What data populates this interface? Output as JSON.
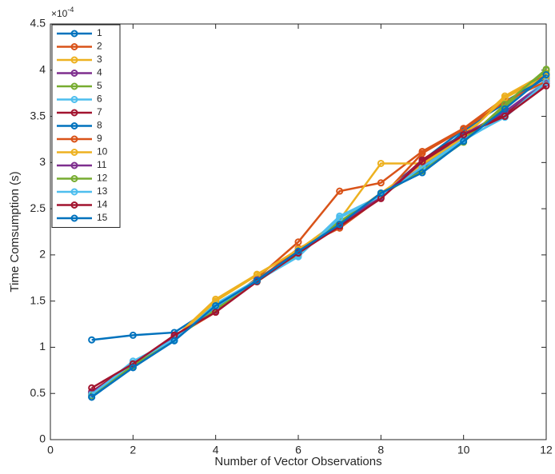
{
  "chart_data": {
    "type": "line",
    "x_label": "Number of Vector Observations",
    "y_label": "Time Comsumption (s)",
    "y_multiplier_base": "×10",
    "y_multiplier_exponent": "-4",
    "x": [
      1,
      2,
      3,
      4,
      5,
      6,
      7,
      8,
      9,
      10,
      11,
      12
    ],
    "xlim": [
      0,
      12
    ],
    "xticks": [
      0,
      2,
      4,
      6,
      8,
      10,
      12
    ],
    "ylim": [
      0,
      4.5
    ],
    "yticks": [
      0,
      0.5,
      1,
      1.5,
      2,
      2.5,
      3,
      3.5,
      4,
      4.5
    ],
    "grid": false,
    "legend_position": "upper-left",
    "series": [
      {
        "name": "1",
        "color": "#0072BD",
        "values": [
          1.08,
          1.13,
          1.16,
          1.45,
          1.73,
          2.03,
          2.35,
          2.65,
          3.02,
          3.36,
          3.64,
          3.92
        ]
      },
      {
        "name": "2",
        "color": "#D95319",
        "values": [
          0.49,
          0.8,
          1.1,
          1.4,
          1.75,
          2.14,
          2.69,
          2.78,
          3.12,
          3.37,
          3.7,
          3.95
        ]
      },
      {
        "name": "3",
        "color": "#EDB120",
        "values": [
          0.5,
          0.82,
          1.1,
          1.52,
          1.79,
          2.05,
          2.38,
          2.99,
          2.99,
          3.3,
          3.72,
          3.97
        ]
      },
      {
        "name": "4",
        "color": "#7E2F8E",
        "values": [
          0.48,
          0.81,
          1.09,
          1.44,
          1.72,
          2.02,
          2.33,
          2.65,
          2.95,
          3.28,
          3.55,
          3.88
        ]
      },
      {
        "name": "5",
        "color": "#77AC30",
        "values": [
          0.5,
          0.82,
          1.1,
          1.42,
          1.74,
          2.03,
          2.36,
          2.66,
          2.94,
          3.25,
          3.6,
          4.0
        ]
      },
      {
        "name": "6",
        "color": "#4DBEEE",
        "values": [
          0.49,
          0.85,
          1.08,
          1.47,
          1.73,
          1.99,
          2.42,
          2.64,
          2.93,
          3.24,
          3.5,
          3.9
        ]
      },
      {
        "name": "7",
        "color": "#A2142F",
        "values": [
          0.52,
          0.82,
          1.12,
          1.41,
          1.72,
          2.04,
          2.34,
          2.62,
          3.03,
          3.31,
          3.52,
          3.86
        ]
      },
      {
        "name": "8",
        "color": "#0072BD",
        "values": [
          0.46,
          0.78,
          1.08,
          1.43,
          1.71,
          2.04,
          2.33,
          2.66,
          2.93,
          3.34,
          3.66,
          3.92
        ]
      },
      {
        "name": "9",
        "color": "#D95319",
        "values": [
          0.5,
          0.81,
          1.11,
          1.38,
          1.72,
          2.07,
          2.29,
          2.62,
          3.1,
          3.36,
          3.66,
          3.88
        ]
      },
      {
        "name": "10",
        "color": "#EDB120",
        "values": [
          0.49,
          0.8,
          1.09,
          1.5,
          1.78,
          2.06,
          2.35,
          2.67,
          2.98,
          3.27,
          3.7,
          3.93
        ]
      },
      {
        "name": "11",
        "color": "#7E2F8E",
        "values": [
          0.51,
          0.8,
          1.11,
          1.4,
          1.73,
          2.03,
          2.33,
          2.63,
          3.01,
          3.3,
          3.55,
          3.86
        ]
      },
      {
        "name": "12",
        "color": "#77AC30",
        "values": [
          0.48,
          0.8,
          1.09,
          1.41,
          1.71,
          2.01,
          2.36,
          2.65,
          2.91,
          3.22,
          3.63,
          4.01
        ]
      },
      {
        "name": "13",
        "color": "#4DBEEE",
        "values": [
          0.49,
          0.83,
          1.09,
          1.44,
          1.72,
          1.98,
          2.4,
          2.64,
          2.95,
          3.25,
          3.49,
          3.87
        ]
      },
      {
        "name": "14",
        "color": "#A2142F",
        "values": [
          0.56,
          0.82,
          1.13,
          1.38,
          1.71,
          2.02,
          2.31,
          2.61,
          3.01,
          3.3,
          3.5,
          3.83
        ]
      },
      {
        "name": "15",
        "color": "#0072BD",
        "values": [
          0.46,
          0.78,
          1.07,
          1.45,
          1.72,
          2.04,
          2.33,
          2.67,
          2.89,
          3.23,
          3.58,
          3.95
        ]
      }
    ]
  }
}
